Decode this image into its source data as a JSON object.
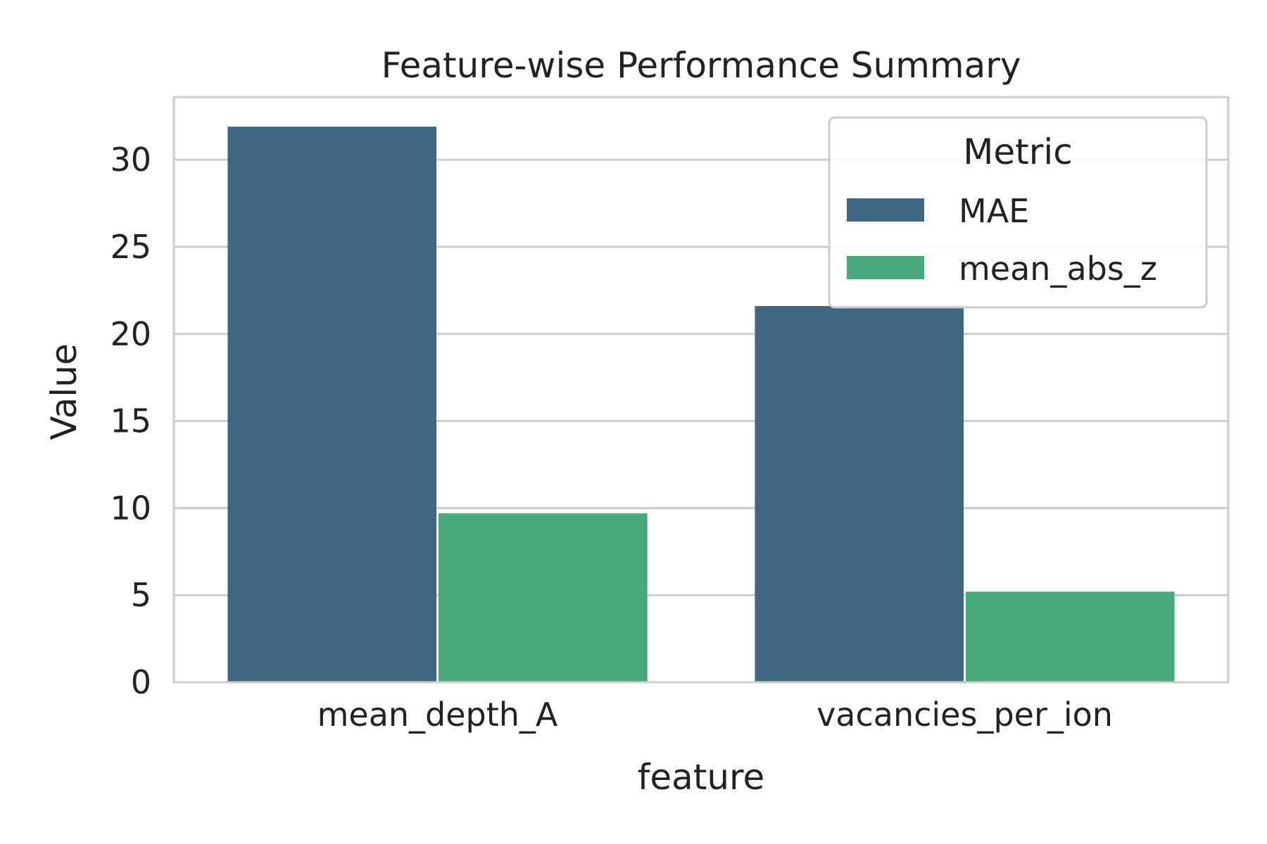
{
  "chart_data": {
    "type": "bar",
    "title": "Feature-wise Performance Summary",
    "xlabel": "feature",
    "ylabel": "Value",
    "categories": [
      "mean_depth_A",
      "vacancies_per_ion"
    ],
    "series": [
      {
        "name": "MAE",
        "color": "#3f6683",
        "values": [
          31.9,
          21.6
        ]
      },
      {
        "name": "mean_abs_z",
        "color": "#48a97a",
        "values": [
          9.7,
          5.2
        ]
      }
    ],
    "ylim": [
      0,
      33.6
    ],
    "yticks": [
      0,
      5,
      10,
      15,
      20,
      25,
      30
    ],
    "grid": true,
    "legend": {
      "title": "Metric",
      "placement": "top-right"
    }
  }
}
